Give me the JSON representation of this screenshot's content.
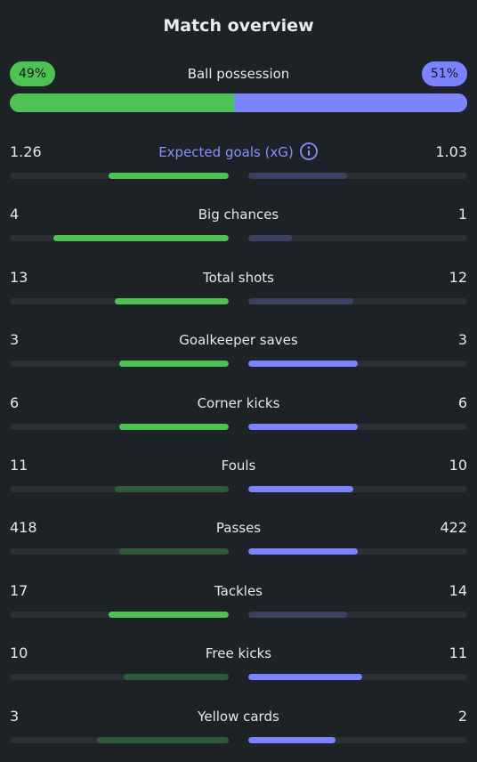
{
  "title": "Match overview",
  "colors": {
    "home": "#4cc352",
    "home_muted": "#2f5a3a",
    "away": "#7b83ff",
    "away_muted": "#3b4160",
    "track": "#2a3034",
    "accent_label": "#8a90ff"
  },
  "possession": {
    "label": "Ball possession",
    "home": "49%",
    "away": "51%",
    "home_fraction": 0.49,
    "away_fraction": 0.51
  },
  "stats": [
    {
      "label": "Expected goals (xG)",
      "home": "1.26",
      "away": "1.03",
      "home_fill": 0.55,
      "away_fill": 0.45,
      "home_active": true,
      "away_active": false,
      "accent": true,
      "icon": "info-icon"
    },
    {
      "label": "Big chances",
      "home": "4",
      "away": "1",
      "home_fill": 0.8,
      "away_fill": 0.2,
      "home_active": true,
      "away_active": false
    },
    {
      "label": "Total shots",
      "home": "13",
      "away": "12",
      "home_fill": 0.52,
      "away_fill": 0.48,
      "home_active": true,
      "away_active": false
    },
    {
      "label": "Goalkeeper saves",
      "home": "3",
      "away": "3",
      "home_fill": 0.5,
      "away_fill": 0.5,
      "home_active": true,
      "away_active": true
    },
    {
      "label": "Corner kicks",
      "home": "6",
      "away": "6",
      "home_fill": 0.5,
      "away_fill": 0.5,
      "home_active": true,
      "away_active": true
    },
    {
      "label": "Fouls",
      "home": "11",
      "away": "10",
      "home_fill": 0.52,
      "away_fill": 0.48,
      "home_active": false,
      "away_active": true
    },
    {
      "label": "Passes",
      "home": "418",
      "away": "422",
      "home_fill": 0.5,
      "away_fill": 0.5,
      "home_active": false,
      "away_active": true
    },
    {
      "label": "Tackles",
      "home": "17",
      "away": "14",
      "home_fill": 0.55,
      "away_fill": 0.45,
      "home_active": true,
      "away_active": false
    },
    {
      "label": "Free kicks",
      "home": "10",
      "away": "11",
      "home_fill": 0.48,
      "away_fill": 0.52,
      "home_active": false,
      "away_active": true
    },
    {
      "label": "Yellow cards",
      "home": "3",
      "away": "2",
      "home_fill": 0.6,
      "away_fill": 0.4,
      "home_active": false,
      "away_active": true
    }
  ]
}
